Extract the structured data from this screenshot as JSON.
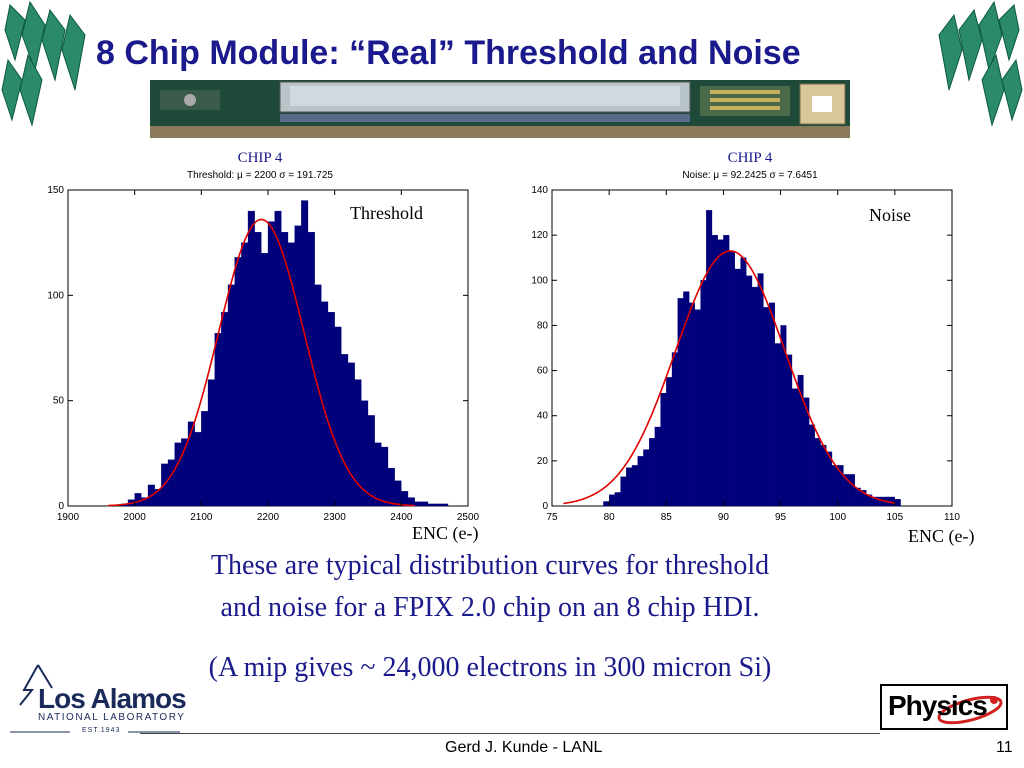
{
  "slide": {
    "title": "8 Chip Module: “Real” Threshold and Noise",
    "caption_line1": "These are typical distribution curves for threshold",
    "caption_line2": "and noise for a FPIX 2.0 chip on an 8 chip HDI.",
    "caption_line3": "(A mip gives ~ 24,000 electrons in 300 micron Si)",
    "footer_author": "Gerd J. Kunde - LANL",
    "page_number": "11",
    "lanl_logo_text": "Los Alamos",
    "lanl_logo_sub": "NATIONAL LABORATORY",
    "lanl_logo_est": "EST.1943",
    "physics_logo_text": "Physics"
  },
  "colors": {
    "title": "#1a1a8c",
    "bar": "#00007a",
    "fit": "#e00000",
    "caption": "#1a1a8c"
  },
  "chart_data": [
    {
      "type": "bar",
      "header": "CHIP 4",
      "subtitle": "Threshold: μ = 2200 σ = 191.725",
      "tag": "Threshold",
      "xlabel": "ENC (e-)",
      "xlim": [
        1900,
        2500
      ],
      "ylim": [
        0,
        150
      ],
      "xticks": [
        1900,
        2000,
        2100,
        2200,
        2300,
        2400,
        2500
      ],
      "yticks": [
        0,
        50,
        100,
        150
      ],
      "bin_width": 10,
      "bins_x": [
        1980,
        1990,
        2000,
        2010,
        2020,
        2030,
        2040,
        2050,
        2060,
        2070,
        2080,
        2090,
        2100,
        2110,
        2120,
        2130,
        2140,
        2150,
        2160,
        2170,
        2180,
        2190,
        2200,
        2210,
        2220,
        2230,
        2240,
        2250,
        2260,
        2270,
        2280,
        2290,
        2300,
        2310,
        2320,
        2330,
        2340,
        2350,
        2360,
        2370,
        2380,
        2390,
        2400,
        2410,
        2420,
        2430,
        2440,
        2450,
        2460
      ],
      "values": [
        1,
        3,
        6,
        4,
        10,
        8,
        20,
        22,
        30,
        32,
        40,
        35,
        45,
        60,
        82,
        92,
        105,
        118,
        125,
        140,
        130,
        120,
        135,
        140,
        130,
        125,
        133,
        145,
        130,
        105,
        97,
        92,
        85,
        72,
        68,
        60,
        50,
        43,
        30,
        28,
        18,
        12,
        7,
        4,
        2,
        2,
        1,
        1,
        1
      ],
      "fit": {
        "type": "gaussian",
        "mu": 2190,
        "sigma": 64,
        "peak": 136,
        "range": [
          1960,
          2420
        ]
      }
    },
    {
      "type": "bar",
      "header": "CHIP 4",
      "subtitle": "Noise: μ = 92.2425 σ = 7.6451",
      "tag": "Noise",
      "xlabel": "ENC (e-)",
      "xlim": [
        75,
        110
      ],
      "ylim": [
        0,
        140
      ],
      "xticks": [
        75,
        80,
        85,
        90,
        95,
        100,
        105,
        110
      ],
      "yticks": [
        0,
        20,
        40,
        60,
        80,
        100,
        120,
        140
      ],
      "bin_width": 0.5,
      "bins_x": [
        79.5,
        80,
        80.5,
        81,
        81.5,
        82,
        82.5,
        83,
        83.5,
        84,
        84.5,
        85,
        85.5,
        86,
        86.5,
        87,
        87.5,
        88,
        88.5,
        89,
        89.5,
        90,
        90.5,
        91,
        91.5,
        92,
        92.5,
        93,
        93.5,
        94,
        94.5,
        95,
        95.5,
        96,
        96.5,
        97,
        97.5,
        98,
        98.5,
        99,
        99.5,
        100,
        100.5,
        101,
        101.5,
        102,
        102.5,
        103,
        103.5,
        104,
        104.5,
        105
      ],
      "values": [
        2,
        5,
        6,
        13,
        17,
        18,
        22,
        25,
        30,
        35,
        50,
        57,
        68,
        92,
        95,
        90,
        87,
        100,
        131,
        120,
        118,
        120,
        113,
        105,
        110,
        102,
        97,
        103,
        88,
        90,
        72,
        80,
        67,
        52,
        58,
        48,
        36,
        30,
        27,
        24,
        18,
        18,
        14,
        14,
        8,
        7,
        5,
        4,
        4,
        4,
        4,
        3
      ],
      "fit": {
        "type": "gaussian",
        "mu": 90.6,
        "sigma": 4.8,
        "peak": 113,
        "range": [
          76,
          105
        ]
      }
    }
  ]
}
